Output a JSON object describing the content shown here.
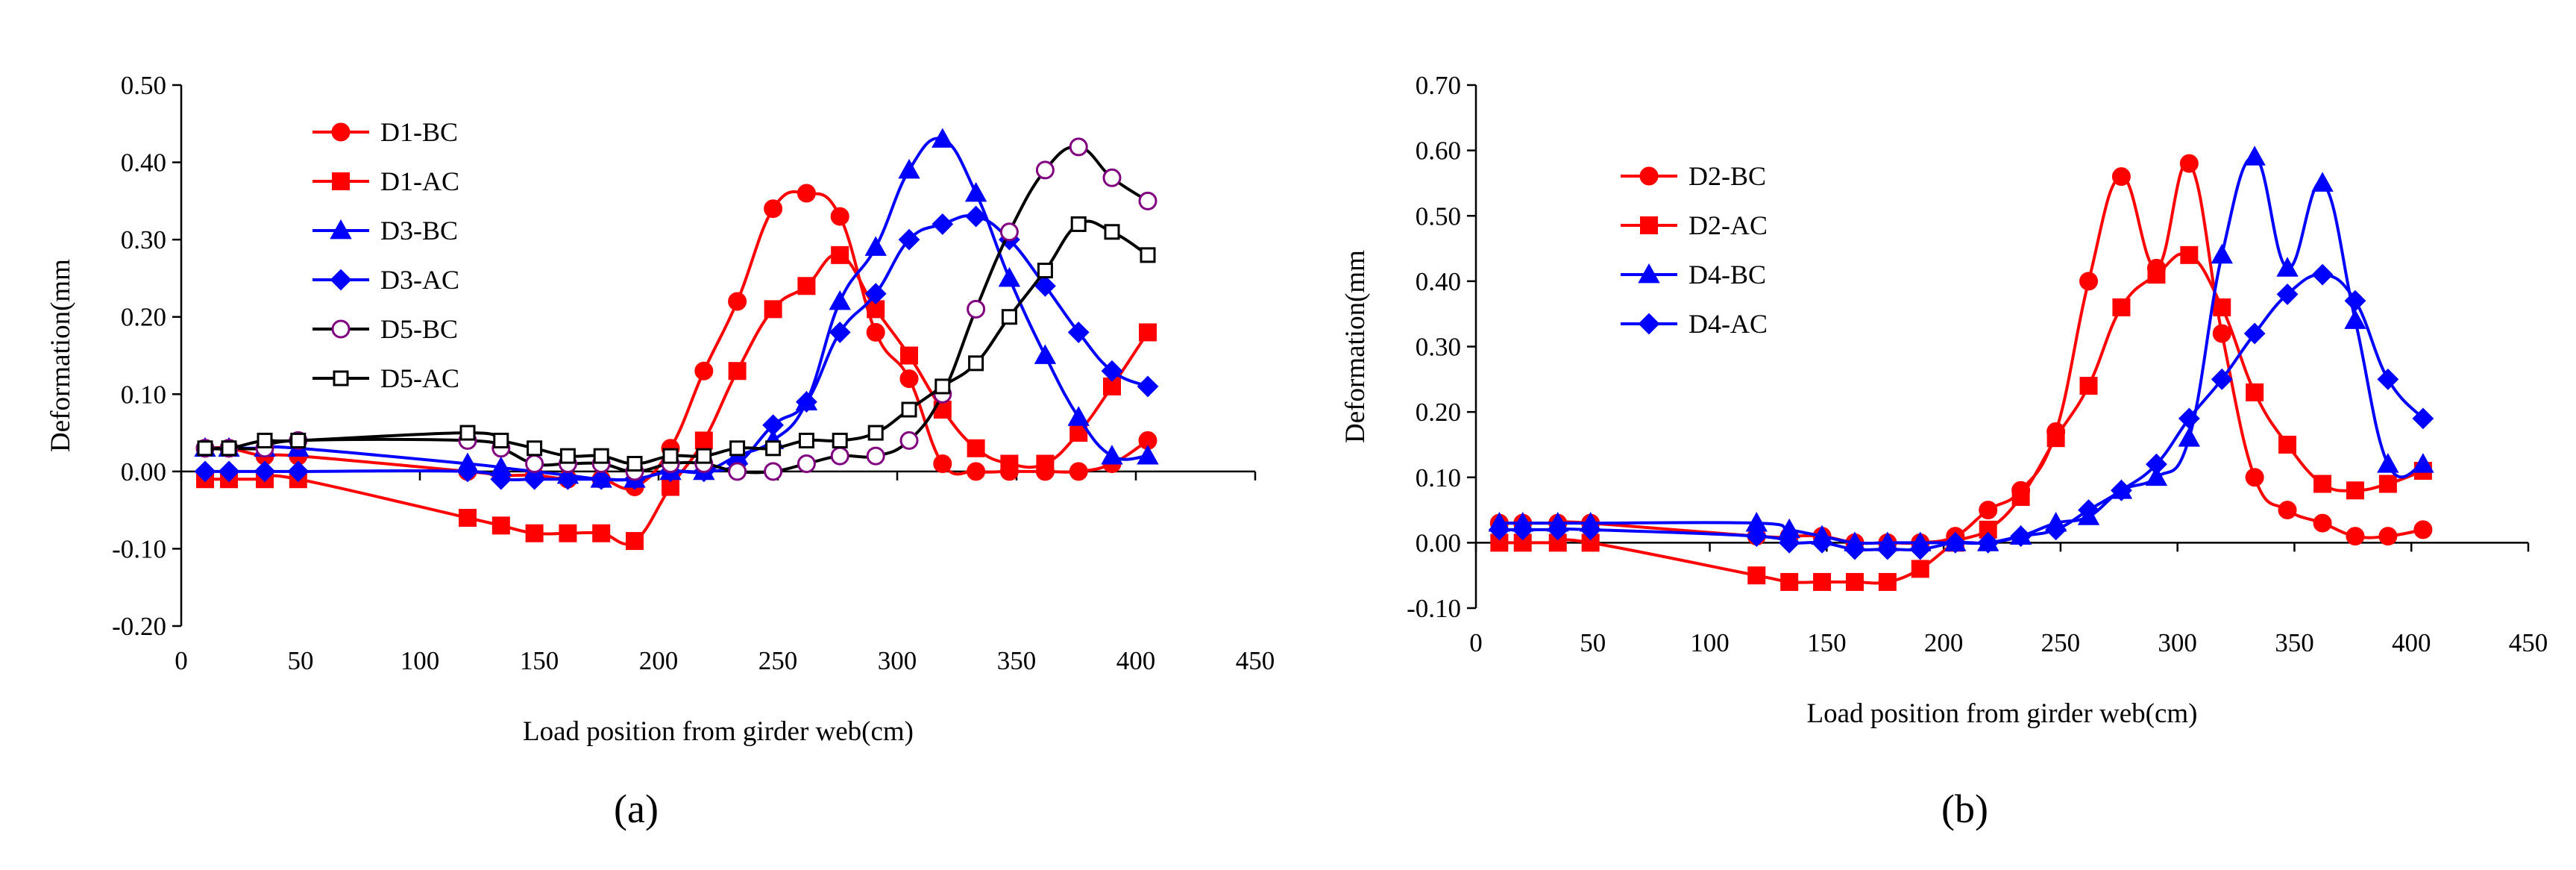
{
  "chart_data": [
    {
      "type": "line",
      "panel_label": "(a)",
      "xlabel": "Load position from girder web(cm)",
      "ylabel": "Deformation(mm",
      "xlim": [
        0,
        450
      ],
      "ylim": [
        -0.2,
        0.5
      ],
      "xticks": [
        0,
        50,
        100,
        150,
        200,
        250,
        300,
        350,
        400,
        450
      ],
      "yticks": [
        -0.2,
        -0.1,
        0.0,
        0.1,
        0.2,
        0.3,
        0.4,
        0.5
      ],
      "ytick_labels": [
        "-0.20",
        "-0.10",
        "0.00",
        "0.10",
        "0.20",
        "0.30",
        "0.40",
        "0.50"
      ],
      "legend_position": "top-left",
      "series": [
        {
          "name": "D1-BC",
          "color": "#ff0000",
          "marker": "circle",
          "filled": true,
          "x": [
            10,
            20,
            35,
            49,
            120,
            134,
            148,
            162,
            176,
            190,
            205,
            219,
            233,
            248,
            262,
            276,
            291,
            305,
            319,
            333,
            347,
            362,
            376,
            390,
            405
          ],
          "y": [
            0.03,
            0.03,
            0.02,
            0.02,
            0.0,
            -0.005,
            -0.005,
            -0.01,
            -0.01,
            -0.02,
            0.03,
            0.13,
            0.22,
            0.34,
            0.36,
            0.33,
            0.18,
            0.12,
            0.01,
            0.0,
            0.0,
            0.0,
            0.0,
            0.01,
            0.04
          ]
        },
        {
          "name": "D1-AC",
          "color": "#ff0000",
          "marker": "square",
          "filled": true,
          "x": [
            10,
            20,
            35,
            49,
            120,
            134,
            148,
            162,
            176,
            190,
            205,
            219,
            233,
            248,
            262,
            276,
            291,
            305,
            319,
            333,
            347,
            362,
            376,
            390,
            405
          ],
          "y": [
            -0.01,
            -0.01,
            -0.01,
            -0.01,
            -0.06,
            -0.07,
            -0.08,
            -0.08,
            -0.08,
            -0.09,
            -0.02,
            0.04,
            0.13,
            0.21,
            0.24,
            0.28,
            0.21,
            0.15,
            0.08,
            0.03,
            0.01,
            0.01,
            0.05,
            0.11,
            0.18
          ]
        },
        {
          "name": "D3-BC",
          "color": "#0000ff",
          "marker": "triangle",
          "filled": true,
          "x": [
            10,
            20,
            35,
            49,
            120,
            134,
            148,
            162,
            176,
            190,
            205,
            219,
            233,
            248,
            262,
            276,
            291,
            305,
            319,
            333,
            347,
            362,
            376,
            390,
            405
          ],
          "y": [
            0.03,
            0.03,
            0.03,
            0.03,
            0.01,
            0.005,
            0.0,
            -0.005,
            -0.01,
            -0.01,
            0.0,
            0.0,
            0.02,
            0.04,
            0.09,
            0.22,
            0.29,
            0.39,
            0.43,
            0.36,
            0.25,
            0.15,
            0.07,
            0.02,
            0.02
          ]
        },
        {
          "name": "D3-AC",
          "color": "#0000ff",
          "marker": "diamond",
          "filled": true,
          "x": [
            10,
            20,
            35,
            49,
            120,
            134,
            148,
            162,
            176,
            190,
            205,
            219,
            233,
            248,
            262,
            276,
            291,
            305,
            319,
            333,
            347,
            362,
            376,
            390,
            405
          ],
          "y": [
            0.0,
            0.0,
            0.0,
            0.0,
            0.0,
            -0.01,
            -0.01,
            -0.01,
            -0.01,
            -0.01,
            0.0,
            0.0,
            0.01,
            0.06,
            0.09,
            0.18,
            0.23,
            0.3,
            0.32,
            0.33,
            0.3,
            0.24,
            0.18,
            0.13,
            0.11
          ]
        },
        {
          "name": "D5-BC",
          "color": "#000000",
          "marker_color": "#800080",
          "marker": "circle",
          "filled": false,
          "x": [
            10,
            20,
            35,
            49,
            120,
            134,
            148,
            162,
            176,
            190,
            205,
            219,
            233,
            248,
            262,
            276,
            291,
            305,
            319,
            333,
            347,
            362,
            376,
            390,
            405
          ],
          "y": [
            0.03,
            0.03,
            0.03,
            0.04,
            0.04,
            0.03,
            0.01,
            0.01,
            0.01,
            0.0,
            0.01,
            0.01,
            0.0,
            0.0,
            0.01,
            0.02,
            0.02,
            0.04,
            0.1,
            0.21,
            0.31,
            0.39,
            0.42,
            0.38,
            0.35
          ]
        },
        {
          "name": "D5-AC",
          "color": "#000000",
          "marker": "square",
          "filled": false,
          "x": [
            10,
            20,
            35,
            49,
            120,
            134,
            148,
            162,
            176,
            190,
            205,
            219,
            233,
            248,
            262,
            276,
            291,
            305,
            319,
            333,
            347,
            362,
            376,
            390,
            405
          ],
          "y": [
            0.03,
            0.03,
            0.04,
            0.04,
            0.05,
            0.04,
            0.03,
            0.02,
            0.02,
            0.01,
            0.02,
            0.02,
            0.03,
            0.03,
            0.04,
            0.04,
            0.05,
            0.08,
            0.11,
            0.14,
            0.2,
            0.26,
            0.32,
            0.31,
            0.28
          ]
        }
      ]
    },
    {
      "type": "line",
      "panel_label": "(b)",
      "xlabel": "Load position from girder web(cm)",
      "ylabel": "Deformation(mm",
      "xlim": [
        0,
        450
      ],
      "ylim": [
        -0.1,
        0.7
      ],
      "xticks": [
        0,
        50,
        100,
        150,
        200,
        250,
        300,
        350,
        400,
        450
      ],
      "yticks": [
        -0.1,
        0.0,
        0.1,
        0.2,
        0.3,
        0.4,
        0.5,
        0.6,
        0.7
      ],
      "ytick_labels": [
        "-0.10",
        "0.00",
        "0.10",
        "0.20",
        "0.30",
        "0.40",
        "0.50",
        "0.60",
        "0.70"
      ],
      "legend_position": "top-left",
      "series": [
        {
          "name": "D2-BC",
          "color": "#ff0000",
          "marker": "circle",
          "filled": true,
          "x": [
            10,
            20,
            35,
            49,
            120,
            134,
            148,
            162,
            176,
            190,
            205,
            219,
            233,
            248,
            262,
            276,
            291,
            305,
            319,
            333,
            347,
            362,
            376,
            390,
            405
          ],
          "y": [
            0.03,
            0.03,
            0.03,
            0.03,
            0.01,
            0.01,
            0.01,
            0.0,
            0.0,
            0.0,
            0.01,
            0.05,
            0.08,
            0.17,
            0.4,
            0.56,
            0.42,
            0.58,
            0.32,
            0.1,
            0.05,
            0.03,
            0.01,
            0.01,
            0.02
          ]
        },
        {
          "name": "D2-AC",
          "color": "#ff0000",
          "marker": "square",
          "filled": true,
          "x": [
            10,
            20,
            35,
            49,
            120,
            134,
            148,
            162,
            176,
            190,
            205,
            219,
            233,
            248,
            262,
            276,
            291,
            305,
            319,
            333,
            347,
            362,
            376,
            390,
            405
          ],
          "y": [
            0.0,
            0.0,
            0.0,
            0.0,
            -0.05,
            -0.06,
            -0.06,
            -0.06,
            -0.06,
            -0.04,
            0.0,
            0.02,
            0.07,
            0.16,
            0.24,
            0.36,
            0.41,
            0.44,
            0.36,
            0.23,
            0.15,
            0.09,
            0.08,
            0.09,
            0.11
          ]
        },
        {
          "name": "D4-BC",
          "color": "#0000ff",
          "marker": "triangle",
          "filled": true,
          "x": [
            10,
            20,
            35,
            49,
            120,
            134,
            148,
            162,
            176,
            190,
            205,
            219,
            233,
            248,
            262,
            276,
            291,
            305,
            319,
            333,
            347,
            362,
            376,
            390,
            405
          ],
          "y": [
            0.03,
            0.03,
            0.03,
            0.03,
            0.03,
            0.02,
            0.01,
            0.0,
            0.0,
            0.0,
            0.0,
            0.0,
            0.01,
            0.03,
            0.04,
            0.08,
            0.1,
            0.16,
            0.44,
            0.59,
            0.42,
            0.55,
            0.34,
            0.12,
            0.12
          ]
        },
        {
          "name": "D4-AC",
          "color": "#0000ff",
          "marker": "diamond",
          "filled": true,
          "x": [
            10,
            20,
            35,
            49,
            120,
            134,
            148,
            162,
            176,
            190,
            205,
            219,
            233,
            248,
            262,
            276,
            291,
            305,
            319,
            333,
            347,
            362,
            376,
            390,
            405
          ],
          "y": [
            0.02,
            0.02,
            0.02,
            0.02,
            0.01,
            0.0,
            0.0,
            -0.01,
            -0.01,
            -0.01,
            0.0,
            0.0,
            0.01,
            0.02,
            0.05,
            0.08,
            0.12,
            0.19,
            0.25,
            0.32,
            0.38,
            0.41,
            0.37,
            0.25,
            0.19
          ]
        }
      ]
    }
  ]
}
